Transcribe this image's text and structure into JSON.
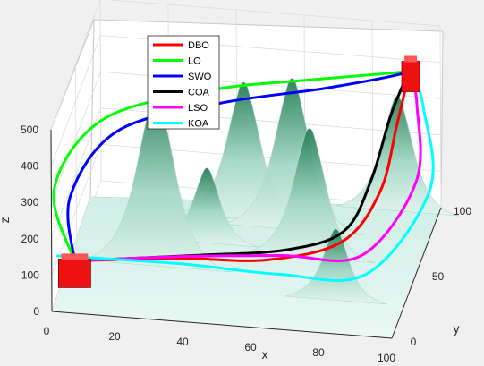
{
  "chart_data": {
    "type": "line",
    "subtype": "3d-path-planning-over-terrain",
    "title": "",
    "xlabel": "x",
    "ylabel": "y",
    "zlabel": "z",
    "xlim": [
      0,
      100
    ],
    "ylim": [
      0,
      100
    ],
    "zlim": [
      0,
      500
    ],
    "xticks": [
      "0",
      "20",
      "40",
      "60",
      "80",
      "100"
    ],
    "yticks": [
      "0",
      "50",
      "100"
    ],
    "zticks": [
      "0",
      "100",
      "200",
      "300",
      "400",
      "500"
    ],
    "grid": true,
    "legend_position": "top-left",
    "terrain_colormap": [
      "#e0f2ee",
      "#1f7a50"
    ],
    "terrain_peaks": [
      {
        "x": 25,
        "y": 40,
        "z": 480
      },
      {
        "x": 60,
        "y": 75,
        "z": 420
      },
      {
        "x": 45,
        "y": 80,
        "z": 380
      },
      {
        "x": 68,
        "y": 55,
        "z": 360
      },
      {
        "x": 88,
        "y": 95,
        "z": 320
      },
      {
        "x": 80,
        "y": 25,
        "z": 200
      },
      {
        "x": 37,
        "y": 60,
        "z": 210
      }
    ],
    "markers": [
      {
        "name": "start-box",
        "x": 5,
        "y": 12,
        "z": 100,
        "color": "#ee1111"
      },
      {
        "name": "goal-box",
        "x": 92,
        "y": 95,
        "z": 400,
        "color": "#ee1111"
      }
    ],
    "series": [
      {
        "name": "DBO",
        "color": "#ff0000",
        "x": [
          5,
          35,
          60,
          80,
          88,
          90,
          92
        ],
        "y": [
          12,
          20,
          24,
          38,
          60,
          80,
          95
        ],
        "z": [
          100,
          100,
          100,
          115,
          180,
          290,
          400
        ]
      },
      {
        "name": "LO",
        "color": "#00ff00",
        "x": [
          5,
          -5,
          5,
          35,
          65,
          90,
          92
        ],
        "y": [
          12,
          40,
          70,
          82,
          88,
          92,
          95
        ],
        "z": [
          100,
          190,
          280,
          340,
          370,
          395,
          400
        ]
      },
      {
        "name": "SWO",
        "color": "#0000ff",
        "x": [
          5,
          0,
          10,
          38,
          68,
          90,
          92
        ],
        "y": [
          12,
          38,
          65,
          78,
          86,
          92,
          95
        ],
        "z": [
          100,
          180,
          270,
          320,
          355,
          390,
          400
        ]
      },
      {
        "name": "COA",
        "color": "#000000",
        "x": [
          5,
          40,
          65,
          80,
          85,
          88,
          92
        ],
        "y": [
          12,
          22,
          30,
          42,
          62,
          82,
          95
        ],
        "z": [
          100,
          105,
          110,
          130,
          200,
          310,
          400
        ]
      },
      {
        "name": "LSO",
        "color": "#ff00ff",
        "x": [
          5,
          38,
          65,
          88,
          100,
          96,
          92
        ],
        "y": [
          12,
          18,
          20,
          22,
          50,
          80,
          95
        ],
        "z": [
          100,
          115,
          130,
          140,
          250,
          350,
          400
        ]
      },
      {
        "name": "KOA",
        "color": "#00ffff",
        "x": [
          0,
          35,
          65,
          90,
          104,
          98,
          92
        ],
        "y": [
          12,
          16,
          14,
          18,
          50,
          80,
          95
        ],
        "z": [
          110,
          100,
          100,
          105,
          230,
          340,
          400
        ]
      }
    ]
  }
}
